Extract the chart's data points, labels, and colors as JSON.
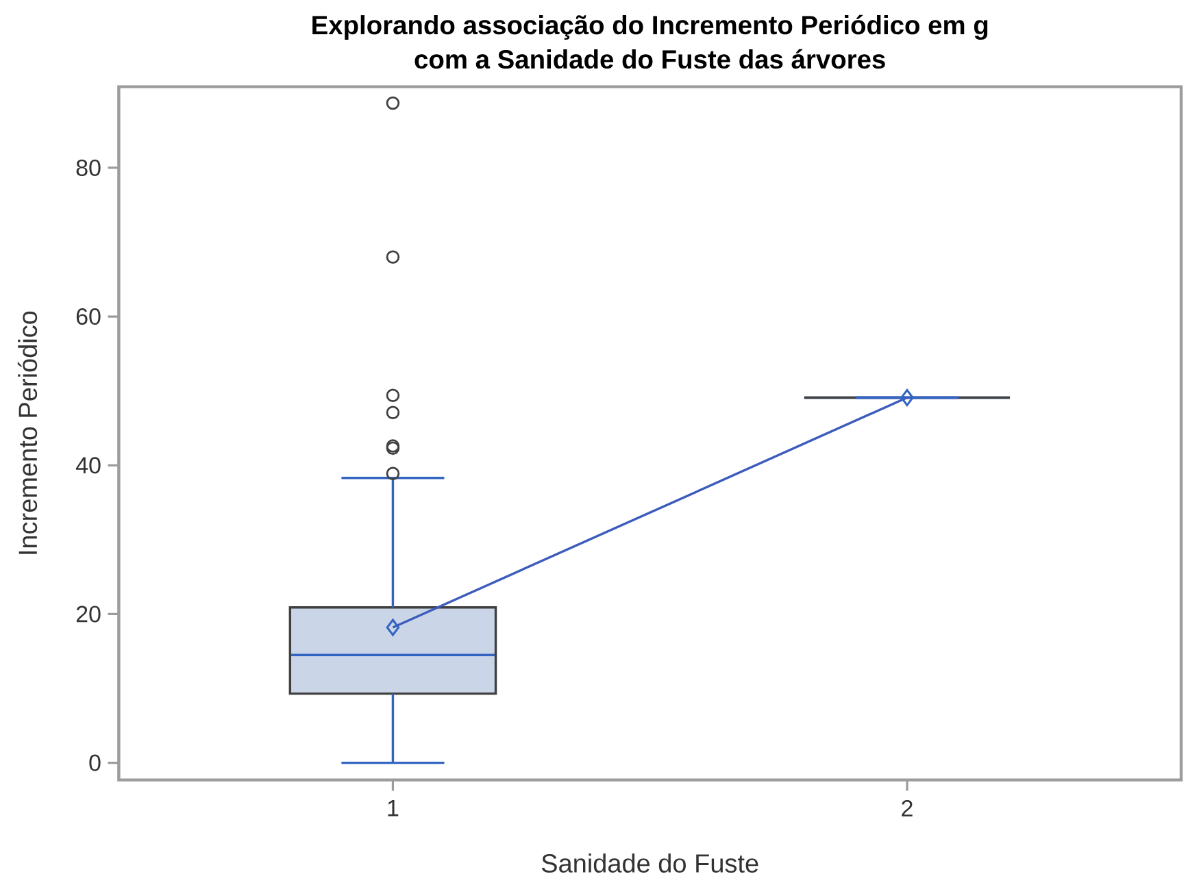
{
  "chart_data": {
    "type": "box",
    "title": "Explorando associação do Incremento Periódico em g com a Sanidade do Fuste das árvores",
    "xlabel": "Sanidade do Fuste",
    "ylabel": "Incremento Periódico",
    "categories": [
      "1",
      "2"
    ],
    "ylim": [
      -2.3,
      90.9
    ],
    "yticks": [
      0,
      20,
      40,
      60,
      80
    ],
    "series": [
      {
        "colors": [
          "#cbd5e8",
          "#3364c1"
        ],
        "boxes": [
          {
            "low": 0,
            "q1": 9.3,
            "median": 14.5,
            "q3": 20.9,
            "high": 38.3,
            "mean": 18.2,
            "outliers": [
              38.9,
              42.3,
              42.6,
              47.1,
              49.4,
              68.0,
              88.7
            ]
          },
          {
            "low": 49.1,
            "q1": 49.1,
            "median": 49.1,
            "q3": 49.1,
            "high": 49.1,
            "mean": 49.1
          }
        ]
      },
      {
        "type": "line",
        "color": "#3b5bbd",
        "values": [
          18.2,
          49.1
        ]
      }
    ]
  }
}
